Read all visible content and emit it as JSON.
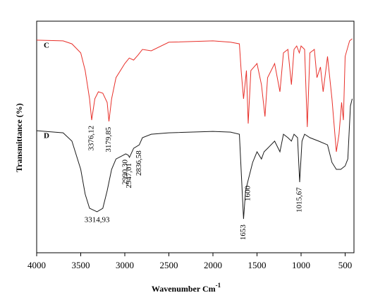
{
  "chart_data": {
    "type": "line",
    "xlabel": "Wavenumber Cm",
    "xlabel_sup": "-1",
    "ylabel": "Transmittance (%)",
    "xlim": [
      4000,
      400
    ],
    "ylim": [
      0,
      100
    ],
    "xticks": [
      4000,
      3500,
      3000,
      2500,
      2000,
      1500,
      1000,
      500
    ],
    "series": [
      {
        "name": "C",
        "color": "#e8302a",
        "x": [
          4000,
          3700,
          3600,
          3500,
          3450,
          3400,
          3376,
          3340,
          3300,
          3250,
          3200,
          3180,
          3150,
          3100,
          3000,
          2950,
          2900,
          2850,
          2800,
          2700,
          2500,
          2000,
          1800,
          1700,
          1680,
          1653,
          1620,
          1600,
          1570,
          1500,
          1450,
          1410,
          1380,
          1300,
          1240,
          1200,
          1150,
          1110,
          1080,
          1050,
          1020,
          1000,
          960,
          930,
          900,
          850,
          820,
          780,
          750,
          700,
          650,
          600,
          570,
          540,
          520,
          500,
          450,
          420
        ],
        "values": [
          91.8,
          91.5,
          90.2,
          86.3,
          78.7,
          66.5,
          57.3,
          66.5,
          69.5,
          68.9,
          64.9,
          56.7,
          66.5,
          75.6,
          81.7,
          84.1,
          83.2,
          85.4,
          87.8,
          87.2,
          90.9,
          91.5,
          90.9,
          90.2,
          78.7,
          66.5,
          78.7,
          55.8,
          78.7,
          81.7,
          72.6,
          58.8,
          75.6,
          81.7,
          69.5,
          86.3,
          87.8,
          72.6,
          87.8,
          89.3,
          86.3,
          89.3,
          87.8,
          54.3,
          86.3,
          87.8,
          75.6,
          80.2,
          69.5,
          84.8,
          66.5,
          43.6,
          51.2,
          64.9,
          57.3,
          84.8,
          91.5,
          92.4
        ]
      },
      {
        "name": "D",
        "color": "#1a1a1a",
        "x": [
          4000,
          3700,
          3600,
          3500,
          3450,
          3400,
          3315,
          3250,
          3200,
          3150,
          3100,
          3050,
          2990,
          2960,
          2947,
          2900,
          2836,
          2800,
          2700,
          2500,
          2000,
          1800,
          1700,
          1653,
          1630,
          1600,
          1550,
          1500,
          1450,
          1420,
          1380,
          1300,
          1240,
          1200,
          1150,
          1110,
          1080,
          1040,
          1016,
          990,
          960,
          900,
          800,
          700,
          650,
          600,
          550,
          500,
          470,
          440,
          420
        ],
        "values": [
          52.7,
          51.8,
          48.2,
          36,
          25.3,
          19.2,
          17.7,
          19.2,
          26.8,
          36,
          40.5,
          41.5,
          42.7,
          42.1,
          41.2,
          45.1,
          46.6,
          49.7,
          51.2,
          51.8,
          52.4,
          52.1,
          51.2,
          14.6,
          26.8,
          31.4,
          39,
          43.6,
          40.5,
          43.6,
          45.1,
          48.2,
          43.6,
          51.2,
          49.7,
          48.2,
          51.2,
          49.7,
          30.5,
          48.2,
          51.2,
          49.7,
          48.2,
          46.6,
          39,
          36,
          36,
          37.5,
          40.5,
          63.4,
          66.5
        ]
      }
    ],
    "annotations": [
      {
        "text": "3376,12",
        "x": 3376.12,
        "series": 0,
        "orientation": "vertical"
      },
      {
        "text": "3179,85",
        "x": 3179.85,
        "series": 0,
        "orientation": "vertical"
      },
      {
        "text": "3314,93",
        "x": 3314.93,
        "series": 1,
        "orientation": "horizontal"
      },
      {
        "text": "2990,30",
        "x": 2990.3,
        "series": 1,
        "orientation": "vertical"
      },
      {
        "text": "2947,01",
        "x": 2947.01,
        "series": 1,
        "orientation": "vertical"
      },
      {
        "text": "2836,58",
        "x": 2836.58,
        "series": 1,
        "orientation": "vertical"
      },
      {
        "text": "1653",
        "x": 1653,
        "series": 1,
        "orientation": "vertical"
      },
      {
        "text": "1600",
        "x": 1600,
        "series": 1,
        "orientation": "vertical"
      },
      {
        "text": "1015,67",
        "x": 1015.67,
        "series": 1,
        "orientation": "vertical"
      }
    ]
  }
}
